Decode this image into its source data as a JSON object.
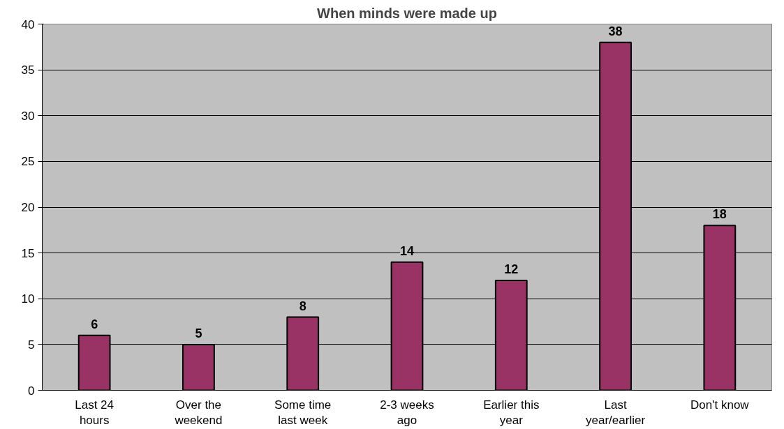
{
  "chart_data": {
    "type": "bar",
    "title": "When minds were made up",
    "categories": [
      "Last 24 hours",
      "Over the weekend",
      "Some time last week",
      "2-3 weeks ago",
      "Earlier this year",
      "Last year/earlier",
      "Don't know"
    ],
    "values": [
      6,
      5,
      8,
      14,
      12,
      38,
      18
    ],
    "color": "#993366",
    "ylim": [
      0,
      40
    ],
    "yticks": [
      0,
      5,
      10,
      15,
      20,
      25,
      30,
      35,
      40
    ],
    "grid": "y",
    "data_labels": true
  }
}
